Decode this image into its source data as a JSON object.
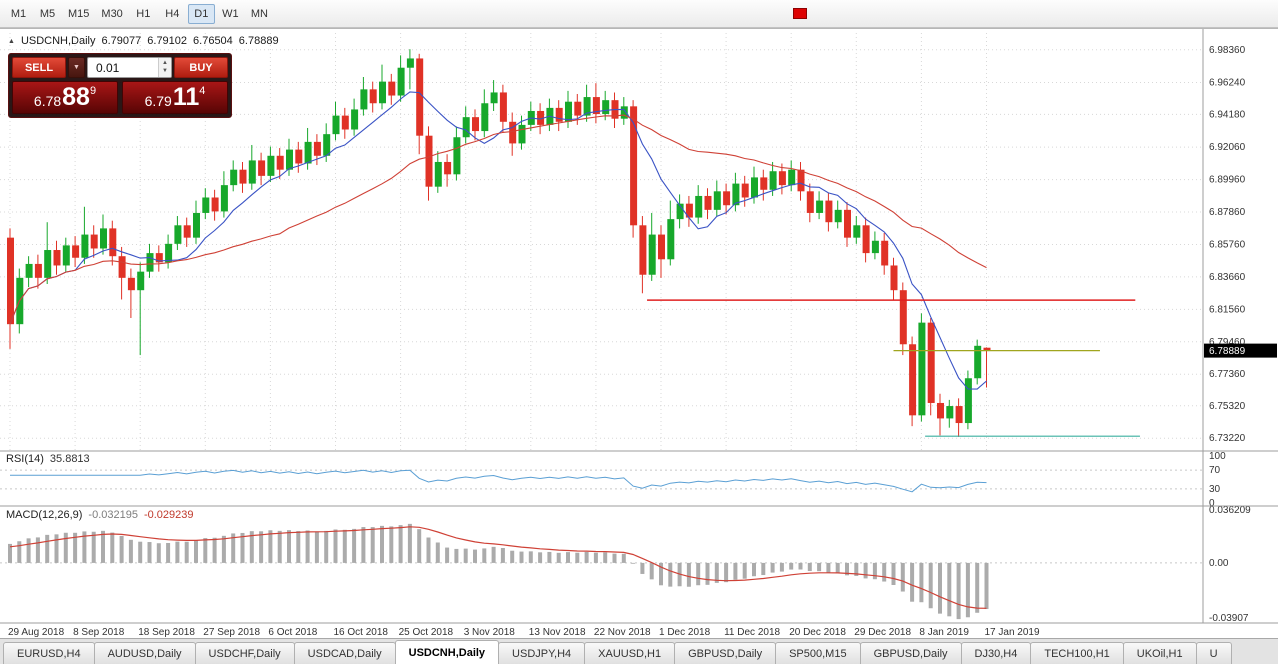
{
  "icons": {
    "collapse": "▲",
    "chevron_down": "▼",
    "spin_up": "▲",
    "spin_down": "▼"
  },
  "toolbar": {
    "timeframes": [
      {
        "label": "M1",
        "active": false
      },
      {
        "label": "M5",
        "active": false
      },
      {
        "label": "M15",
        "active": false
      },
      {
        "label": "M30",
        "active": false
      },
      {
        "label": "H1",
        "active": false
      },
      {
        "label": "H4",
        "active": false
      },
      {
        "label": "D1",
        "active": true
      },
      {
        "label": "W1",
        "active": false
      },
      {
        "label": "MN",
        "active": false
      }
    ],
    "marker_color": "#dd0404"
  },
  "chart": {
    "symbol_title": "USDCNH,Daily",
    "ohlc": {
      "open": "6.79077",
      "high": "6.79102",
      "low": "6.76504",
      "close": "6.78889"
    },
    "trade_panel": {
      "sell_label": "SELL",
      "buy_label": "BUY",
      "volume": "0.01",
      "sell_price": {
        "big": "6.78",
        "mid": "88",
        "sup": "9"
      },
      "buy_price": {
        "big": "6.79",
        "mid": "11",
        "sup": "4"
      }
    },
    "price_axis_labels": [
      "6.98360",
      "6.96240",
      "6.94180",
      "6.92060",
      "6.89960",
      "6.87860",
      "6.85760",
      "6.83660",
      "6.81560",
      "6.79460",
      "6.77360",
      "6.75320",
      "6.73220"
    ],
    "current_price_tag": "6.78889",
    "colors": {
      "up": "#17a82b",
      "down": "#e03226",
      "ma_fast": "#3a53c5",
      "ma_slow": "#cf4136",
      "hline_red": "#e02020",
      "hline_olive": "#a0a51e",
      "hline_teal": "#3aaf9f",
      "rsi": "#5a9fd4",
      "macd_hist": "#ababab",
      "macd_signal": "#cf4136",
      "grid": "#d8d8d8",
      "frame": "#9e9e9e",
      "price_tag_bg": "#000000",
      "price_tag_text": "#ffffff",
      "axis_text": "#333333"
    }
  },
  "chart_data": {
    "type": "candlestick",
    "symbol": "USDCNH",
    "timeframe": "Daily",
    "title": "USDCNH,Daily 6.79077 6.79102 6.76504 6.78889",
    "price_range": [
      6.7265,
      6.988
    ],
    "x_date_labels": [
      "29 Aug 2018",
      "8 Sep 2018",
      "18 Sep 2018",
      "27 Sep 2018",
      "6 Oct 2018",
      "16 Oct 2018",
      "25 Oct 2018",
      "3 Nov 2018",
      "13 Nov 2018",
      "22 Nov 2018",
      "1 Dec 2018",
      "11 Dec 2018",
      "20 Dec 2018",
      "29 Dec 2018",
      "8 Jan 2019",
      "17 Jan 2019"
    ],
    "label_every_n_candles": 7,
    "candles_ohlc": [
      [
        6.862,
        6.868,
        6.79,
        6.806
      ],
      [
        6.806,
        6.842,
        6.8,
        6.836
      ],
      [
        6.836,
        6.85,
        6.83,
        6.845
      ],
      [
        6.845,
        6.851,
        6.829,
        6.836
      ],
      [
        6.836,
        6.872,
        6.832,
        6.854
      ],
      [
        6.854,
        6.86,
        6.838,
        6.844
      ],
      [
        6.844,
        6.862,
        6.84,
        6.857
      ],
      [
        6.857,
        6.863,
        6.843,
        6.849
      ],
      [
        6.849,
        6.882,
        6.845,
        6.864
      ],
      [
        6.864,
        6.87,
        6.849,
        6.855
      ],
      [
        6.855,
        6.877,
        6.851,
        6.868
      ],
      [
        6.868,
        6.873,
        6.844,
        6.85
      ],
      [
        6.85,
        6.856,
        6.822,
        6.836
      ],
      [
        6.836,
        6.842,
        6.81,
        6.828
      ],
      [
        6.828,
        6.846,
        6.786,
        6.84
      ],
      [
        6.84,
        6.858,
        6.836,
        6.852
      ],
      [
        6.852,
        6.857,
        6.84,
        6.846
      ],
      [
        6.846,
        6.864,
        6.842,
        6.858
      ],
      [
        6.858,
        6.876,
        6.854,
        6.87
      ],
      [
        6.87,
        6.875,
        6.856,
        6.862
      ],
      [
        6.862,
        6.886,
        6.858,
        6.878
      ],
      [
        6.878,
        6.894,
        6.874,
        6.888
      ],
      [
        6.888,
        6.893,
        6.873,
        6.879
      ],
      [
        6.879,
        6.905,
        6.875,
        6.896
      ],
      [
        6.896,
        6.912,
        6.892,
        6.906
      ],
      [
        6.906,
        6.911,
        6.891,
        6.897
      ],
      [
        6.897,
        6.922,
        6.893,
        6.912
      ],
      [
        6.912,
        6.917,
        6.896,
        6.902
      ],
      [
        6.902,
        6.921,
        6.898,
        6.915
      ],
      [
        6.915,
        6.92,
        6.9,
        6.906
      ],
      [
        6.906,
        6.926,
        6.902,
        6.919
      ],
      [
        6.919,
        6.924,
        6.904,
        6.91
      ],
      [
        6.91,
        6.933,
        6.906,
        6.924
      ],
      [
        6.924,
        6.929,
        6.909,
        6.915
      ],
      [
        6.915,
        6.936,
        6.911,
        6.929
      ],
      [
        6.929,
        6.95,
        6.925,
        6.941
      ],
      [
        6.941,
        6.946,
        6.926,
        6.932
      ],
      [
        6.932,
        6.952,
        6.928,
        6.945
      ],
      [
        6.945,
        6.966,
        6.941,
        6.958
      ],
      [
        6.958,
        6.963,
        6.943,
        6.949
      ],
      [
        6.949,
        6.974,
        6.945,
        6.963
      ],
      [
        6.963,
        6.968,
        6.948,
        6.954
      ],
      [
        6.954,
        6.98,
        6.95,
        6.972
      ],
      [
        6.972,
        6.984,
        6.958,
        6.978
      ],
      [
        6.978,
        6.981,
        6.916,
        6.928
      ],
      [
        6.928,
        6.934,
        6.886,
        6.895
      ],
      [
        6.895,
        6.918,
        6.891,
        6.911
      ],
      [
        6.911,
        6.916,
        6.895,
        6.903
      ],
      [
        6.903,
        6.934,
        6.899,
        6.927
      ],
      [
        6.927,
        6.947,
        6.923,
        6.94
      ],
      [
        6.94,
        6.945,
        6.925,
        6.931
      ],
      [
        6.931,
        6.958,
        6.927,
        6.949
      ],
      [
        6.949,
        6.964,
        6.944,
        6.956
      ],
      [
        6.956,
        6.961,
        6.93,
        6.937
      ],
      [
        6.937,
        6.943,
        6.915,
        6.923
      ],
      [
        6.923,
        6.941,
        6.919,
        6.935
      ],
      [
        6.935,
        6.95,
        6.931,
        6.944
      ],
      [
        6.944,
        6.949,
        6.929,
        6.935
      ],
      [
        6.935,
        6.952,
        6.931,
        6.946
      ],
      [
        6.946,
        6.951,
        6.931,
        6.937
      ],
      [
        6.937,
        6.957,
        6.933,
        6.95
      ],
      [
        6.95,
        6.955,
        6.935,
        6.941
      ],
      [
        6.941,
        6.961,
        6.937,
        6.953
      ],
      [
        6.953,
        6.962,
        6.936,
        6.942
      ],
      [
        6.942,
        6.957,
        6.938,
        6.951
      ],
      [
        6.951,
        6.956,
        6.933,
        6.939
      ],
      [
        6.939,
        6.953,
        6.935,
        6.947
      ],
      [
        6.947,
        6.951,
        6.862,
        6.87
      ],
      [
        6.87,
        6.876,
        6.826,
        6.838
      ],
      [
        6.838,
        6.878,
        6.834,
        6.864
      ],
      [
        6.864,
        6.87,
        6.836,
        6.848
      ],
      [
        6.848,
        6.886,
        6.844,
        6.874
      ],
      [
        6.874,
        6.89,
        6.868,
        6.884
      ],
      [
        6.884,
        6.889,
        6.869,
        6.875
      ],
      [
        6.875,
        6.896,
        6.871,
        6.889
      ],
      [
        6.889,
        6.894,
        6.874,
        6.88
      ],
      [
        6.88,
        6.899,
        6.876,
        6.892
      ],
      [
        6.892,
        6.897,
        6.877,
        6.883
      ],
      [
        6.883,
        6.904,
        6.879,
        6.897
      ],
      [
        6.897,
        6.902,
        6.882,
        6.888
      ],
      [
        6.888,
        6.908,
        6.884,
        6.901
      ],
      [
        6.901,
        6.906,
        6.886,
        6.893
      ],
      [
        6.893,
        6.911,
        6.889,
        6.905
      ],
      [
        6.905,
        6.91,
        6.89,
        6.896
      ],
      [
        6.896,
        6.912,
        6.892,
        6.906
      ],
      [
        6.906,
        6.911,
        6.886,
        6.892
      ],
      [
        6.892,
        6.897,
        6.872,
        6.878
      ],
      [
        6.878,
        6.892,
        6.874,
        6.886
      ],
      [
        6.886,
        6.891,
        6.866,
        6.872
      ],
      [
        6.872,
        6.886,
        6.868,
        6.88
      ],
      [
        6.88,
        6.885,
        6.856,
        6.862
      ],
      [
        6.862,
        6.876,
        6.858,
        6.87
      ],
      [
        6.87,
        6.875,
        6.846,
        6.852
      ],
      [
        6.852,
        6.866,
        6.848,
        6.86
      ],
      [
        6.86,
        6.865,
        6.838,
        6.844
      ],
      [
        6.844,
        6.849,
        6.822,
        6.828
      ],
      [
        6.828,
        6.833,
        6.786,
        6.793
      ],
      [
        6.793,
        6.798,
        6.74,
        6.747
      ],
      [
        6.747,
        6.813,
        6.743,
        6.807
      ],
      [
        6.807,
        6.81,
        6.747,
        6.755
      ],
      [
        6.755,
        6.761,
        6.734,
        6.745
      ],
      [
        6.745,
        6.757,
        6.739,
        6.753
      ],
      [
        6.753,
        6.758,
        6.733,
        6.742
      ],
      [
        6.742,
        6.776,
        6.738,
        6.771
      ],
      [
        6.771,
        6.796,
        6.767,
        6.792
      ],
      [
        6.79077,
        6.79102,
        6.76504,
        6.78889
      ]
    ],
    "overlays": {
      "ma_fast_period": 8,
      "ma_slow_period": 30
    },
    "hlines": [
      {
        "price": 6.8216,
        "from_index": 68.5,
        "to_index": 121.0,
        "color_key": "hline_red",
        "width": 1.5
      },
      {
        "price": 6.7889,
        "from_index": 95.0,
        "to_index": 117.2,
        "color_key": "hline_olive",
        "width": 1.2
      },
      {
        "price": 6.7335,
        "from_index": 98.4,
        "to_index": 121.5,
        "color_key": "hline_teal",
        "width": 1.2
      }
    ],
    "indicators": {
      "rsi": {
        "label_name": "RSI(14)",
        "label_value": "35.8813",
        "period": 14,
        "scale_labels": [
          "100",
          "70",
          "30",
          "0"
        ],
        "scale_values": [
          100,
          70,
          30,
          0
        ],
        "levels": [
          70,
          30
        ],
        "range": [
          0,
          100
        ]
      },
      "macd": {
        "label_name": "MACD(12,26,9)",
        "value_main": "-0.032195",
        "value_signal": "-0.029239",
        "fast": 12,
        "slow": 26,
        "signal": 9,
        "scale_labels": [
          "0.036209",
          "0.00",
          "-0.03907"
        ],
        "scale_values": [
          0.036209,
          0,
          -0.03907
        ],
        "range": [
          -0.03907,
          0.036209
        ]
      }
    }
  },
  "tabs": {
    "items": [
      {
        "label": "EURUSD,H4",
        "active": false
      },
      {
        "label": "AUDUSD,Daily",
        "active": false
      },
      {
        "label": "USDCHF,Daily",
        "active": false
      },
      {
        "label": "USDCAD,Daily",
        "active": false
      },
      {
        "label": "USDCNH,Daily",
        "active": true
      },
      {
        "label": "USDJPY,H4",
        "active": false
      },
      {
        "label": "XAUUSD,H1",
        "active": false
      },
      {
        "label": "GBPUSD,Daily",
        "active": false
      },
      {
        "label": "SP500,M15",
        "active": false
      },
      {
        "label": "GBPUSD,Daily",
        "active": false
      },
      {
        "label": "DJ30,H4",
        "active": false
      },
      {
        "label": "TECH100,H1",
        "active": false
      },
      {
        "label": "UKOil,H1",
        "active": false
      },
      {
        "label": "U",
        "active": false
      }
    ]
  }
}
